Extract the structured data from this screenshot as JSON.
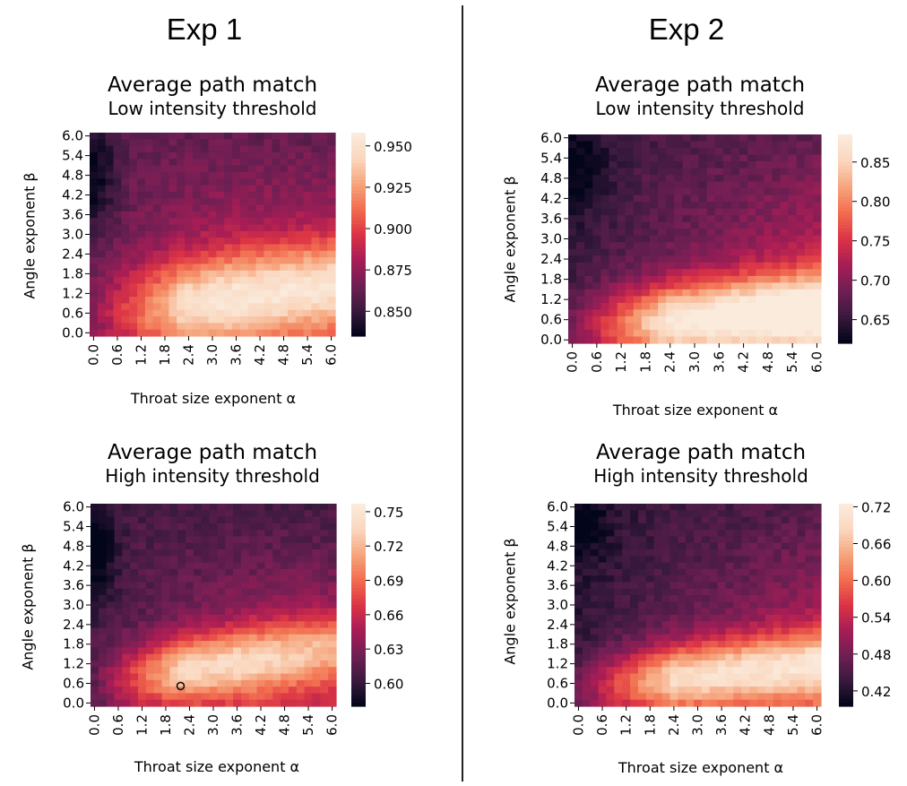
{
  "columns": [
    {
      "label": "Exp 1"
    },
    {
      "label": "Exp 2"
    }
  ],
  "colors": {
    "colormap": "rocket",
    "stops": [
      "#03051a",
      "#3b1a3f",
      "#711f54",
      "#a81d55",
      "#db3445",
      "#f26c4f",
      "#f6a47b",
      "#fad6bd",
      "#faebdd"
    ],
    "marker": "#111111"
  },
  "chart_data": [
    {
      "type": "heatmap",
      "id": "exp1_low",
      "title": "Average path match",
      "subtitle": "Low intensity threshold",
      "xlabel": "Throat size exponent α",
      "ylabel": "Angle exponent β",
      "x_ticks": [
        "0.0",
        "0.6",
        "1.2",
        "1.8",
        "2.4",
        "3.0",
        "3.6",
        "4.2",
        "4.8",
        "5.4",
        "6.0"
      ],
      "y_ticks": [
        "6.0",
        "5.4",
        "4.8",
        "4.2",
        "3.6",
        "3.0",
        "2.4",
        "1.8",
        "1.2",
        "0.6",
        "0.0"
      ],
      "x_range": [
        0,
        6
      ],
      "y_range": [
        0,
        6
      ],
      "grid_cells": 31,
      "colorbar_ticks": [
        "0.950",
        "0.925",
        "0.900",
        "0.875",
        "0.850"
      ],
      "value_range": [
        0.835,
        0.958
      ],
      "peak": {
        "alpha": 2.2,
        "beta": 0.6,
        "value": 0.955
      },
      "low_region": {
        "alpha": 0.3,
        "beta": 4.8,
        "value": 0.836
      }
    },
    {
      "type": "heatmap",
      "id": "exp2_low",
      "title": "Average path match",
      "subtitle": "Low intensity threshold",
      "xlabel": "Throat size exponent α",
      "ylabel": "Angle exponent β",
      "x_ticks": [
        "0.0",
        "0.6",
        "1.2",
        "1.8",
        "2.4",
        "3.0",
        "3.6",
        "4.2",
        "4.8",
        "5.4",
        "6.0"
      ],
      "y_ticks": [
        "6.0",
        "5.4",
        "4.8",
        "4.2",
        "3.6",
        "3.0",
        "2.4",
        "1.8",
        "1.2",
        "0.6",
        "0.0"
      ],
      "x_range": [
        0,
        6
      ],
      "y_range": [
        0,
        6
      ],
      "grid_cells": 31,
      "colorbar_ticks": [
        "0.85",
        "0.80",
        "0.75",
        "0.70",
        "0.65"
      ],
      "value_range": [
        0.62,
        0.885
      ],
      "peak": {
        "alpha": 3.0,
        "beta": 0.4,
        "value": 0.88
      },
      "low_region": {
        "alpha": 0.3,
        "beta": 5.2,
        "value": 0.625
      }
    },
    {
      "type": "heatmap",
      "id": "exp1_high",
      "title": "Average path match",
      "subtitle": "High intensity threshold",
      "xlabel": "Throat size exponent α",
      "ylabel": "Angle exponent β",
      "x_ticks": [
        "0.0",
        "0.6",
        "1.2",
        "1.8",
        "2.4",
        "3.0",
        "3.6",
        "4.2",
        "4.8",
        "5.4",
        "6.0"
      ],
      "y_ticks": [
        "6.0",
        "5.4",
        "4.8",
        "4.2",
        "3.6",
        "3.0",
        "2.4",
        "1.8",
        "1.2",
        "0.6",
        "0.0"
      ],
      "x_range": [
        0,
        6
      ],
      "y_range": [
        0,
        6
      ],
      "grid_cells": 31,
      "colorbar_ticks": [
        "0.75",
        "0.72",
        "0.69",
        "0.66",
        "0.63",
        "0.60"
      ],
      "value_range": [
        0.58,
        0.757
      ],
      "peak": {
        "alpha": 2.2,
        "beta": 0.6,
        "value": 0.755,
        "marked": true
      },
      "low_region": {
        "alpha": 0.3,
        "beta": 4.5,
        "value": 0.582
      }
    },
    {
      "type": "heatmap",
      "id": "exp2_high",
      "title": "Average path match",
      "subtitle": "High intensity threshold",
      "xlabel": "Throat size exponent α",
      "ylabel": "Angle exponent β",
      "x_ticks": [
        "0.0",
        "0.6",
        "1.2",
        "1.8",
        "2.4",
        "3.0",
        "3.6",
        "4.2",
        "4.8",
        "5.4",
        "6.0"
      ],
      "y_ticks": [
        "6.0",
        "5.4",
        "4.8",
        "4.2",
        "3.6",
        "3.0",
        "2.4",
        "1.8",
        "1.2",
        "0.6",
        "0.0"
      ],
      "x_range": [
        0,
        6
      ],
      "y_range": [
        0,
        6
      ],
      "grid_cells": 31,
      "colorbar_ticks": [
        "0.72",
        "0.66",
        "0.60",
        "0.54",
        "0.48",
        "0.42"
      ],
      "value_range": [
        0.395,
        0.725
      ],
      "peak": {
        "alpha": 1.8,
        "beta": 0.3,
        "value": 0.72
      },
      "low_region": {
        "alpha": 0.3,
        "beta": 5.5,
        "value": 0.4
      }
    }
  ]
}
